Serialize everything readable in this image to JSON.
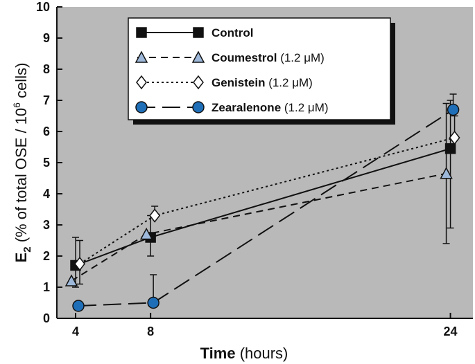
{
  "chart_data": {
    "type": "line",
    "x_ticks": [
      "4",
      "8",
      "24"
    ],
    "y_ticks": [
      "0",
      "1",
      "2",
      "3",
      "4",
      "5",
      "6",
      "7",
      "8",
      "9",
      "10"
    ],
    "xlim": [
      3,
      25.2
    ],
    "ylim": [
      0,
      10
    ],
    "xlabel": {
      "bold_part": "Time",
      "rest": " (hours)"
    },
    "ylabel": {
      "main": "E",
      "subscript": "2",
      "rest_before_sup": "  (% of total OSE / 10",
      "superscript": "6",
      "rest_after_sup": " cells)"
    },
    "grid": false,
    "legend_position": "top-center",
    "background_color": "#b9b9b9",
    "series": [
      {
        "name": "Control",
        "name_suffix": "",
        "marker": "square",
        "line": "solid",
        "color": "#111111",
        "fill": "#111111",
        "points": [
          {
            "x": 4,
            "y": 1.7,
            "err_low": 1.0,
            "err_high": 2.6
          },
          {
            "x": 8,
            "y": 2.6,
            "err_low": 2.0,
            "err_high": 3.3
          },
          {
            "x": 24,
            "y": 5.45,
            "err_low": 2.9,
            "err_high": 7.0
          }
        ]
      },
      {
        "name": "Coumestrol",
        "name_suffix": "(1.2 μM)",
        "marker": "triangle",
        "line": "dashed",
        "color": "#111111",
        "fill": "#9db8d9",
        "points": [
          {
            "x": 4,
            "y": 1.2,
            "err_low": null,
            "err_high": null
          },
          {
            "x": 8,
            "y": 2.7,
            "err_low": null,
            "err_high": null
          },
          {
            "x": 24,
            "y": 4.65,
            "err_low": 2.4,
            "err_high": 6.9
          }
        ]
      },
      {
        "name": "Genistein",
        "name_suffix": "(1.2 μM)",
        "marker": "diamond",
        "line": "dotted",
        "color": "#111111",
        "fill": "#ffffff",
        "points": [
          {
            "x": 4,
            "y": 1.75,
            "err_low": 1.1,
            "err_high": 2.5
          },
          {
            "x": 8,
            "y": 3.3,
            "err_low": null,
            "err_high": 3.6
          },
          {
            "x": 24,
            "y": 5.8,
            "err_low": null,
            "err_high": 6.5
          }
        ]
      },
      {
        "name": "Zearalenone",
        "name_suffix": "(1.2 μM)",
        "marker": "circle",
        "line": "longdash",
        "color": "#111111",
        "fill": "#1f6fb8",
        "points": [
          {
            "x": 4,
            "y": 0.4,
            "err_low": null,
            "err_high": null
          },
          {
            "x": 8,
            "y": 0.5,
            "err_low": null,
            "err_high": 1.4
          },
          {
            "x": 24,
            "y": 6.7,
            "err_low": null,
            "err_high": 7.2
          }
        ]
      }
    ]
  }
}
